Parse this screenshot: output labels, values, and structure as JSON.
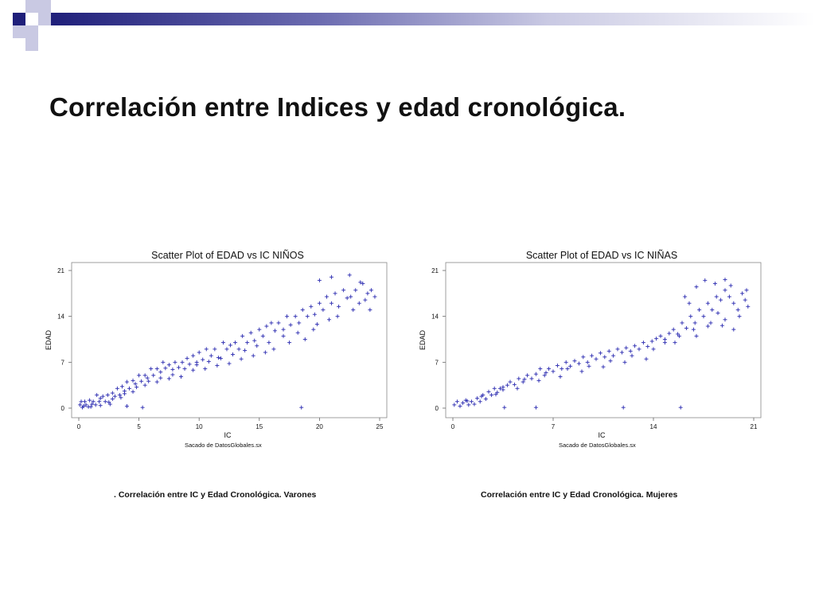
{
  "slide": {
    "title": "Correlación entre Indices y edad cronológica."
  },
  "colors": {
    "accent_dark": "#1f1f7a",
    "accent_light": "#c9c9e3",
    "marker": "#2a2ab0"
  },
  "captions": {
    "left": ". Correlación entre IC y Edad Cronológica. Varones",
    "right": "Correlación entre IC y Edad Cronológica. Mujeres"
  },
  "chart_data": [
    {
      "type": "scatter",
      "title": "Scatter Plot of EDAD vs IC NIÑOS",
      "xlabel": "IC",
      "ylabel": "EDAD",
      "footnote": "Sacado de DatosGlobales.sx",
      "xlim": [
        0,
        25
      ],
      "ylim": [
        0,
        21
      ],
      "xticks": [
        0,
        5,
        10,
        15,
        20,
        25
      ],
      "yticks": [
        0,
        7,
        14,
        21
      ],
      "marker": "plus",
      "series": [
        {
          "points": [
            [
              0.1,
              0.5
            ],
            [
              0.2,
              1
            ],
            [
              0.4,
              0.3
            ],
            [
              0.5,
              1
            ],
            [
              0.6,
              0.5
            ],
            [
              0.8,
              0.2
            ],
            [
              0.9,
              1.2
            ],
            [
              1.1,
              0.6
            ],
            [
              1.2,
              1
            ],
            [
              1.4,
              0.5
            ],
            [
              1.5,
              2
            ],
            [
              1.7,
              1
            ],
            [
              1.8,
              0.4
            ],
            [
              2.0,
              1.8
            ],
            [
              2.2,
              1
            ],
            [
              2.4,
              2
            ],
            [
              2.6,
              0.6
            ],
            [
              2.8,
              2.3
            ],
            [
              3.0,
              1.8
            ],
            [
              3.2,
              3
            ],
            [
              3.4,
              2
            ],
            [
              3.6,
              3.3
            ],
            [
              3.8,
              2.6
            ],
            [
              4.0,
              4
            ],
            [
              4.2,
              3
            ],
            [
              4.5,
              4.2
            ],
            [
              4.7,
              3.7
            ],
            [
              5.0,
              5
            ],
            [
              5.2,
              4.1
            ],
            [
              5.5,
              5
            ],
            [
              5.7,
              4.6
            ],
            [
              6.0,
              6
            ],
            [
              6.2,
              5
            ],
            [
              6.5,
              6
            ],
            [
              6.8,
              5.5
            ],
            [
              7.0,
              7
            ],
            [
              7.2,
              6.1
            ],
            [
              7.5,
              6.6
            ],
            [
              7.8,
              5.9
            ],
            [
              8.0,
              7
            ],
            [
              8.3,
              6.2
            ],
            [
              8.6,
              7
            ],
            [
              9.0,
              7.6
            ],
            [
              9.2,
              6.7
            ],
            [
              9.5,
              8
            ],
            [
              9.8,
              7
            ],
            [
              10.0,
              8.5
            ],
            [
              10.3,
              7.4
            ],
            [
              10.6,
              9
            ],
            [
              11.0,
              8
            ],
            [
              11.3,
              9
            ],
            [
              11.6,
              7.7
            ],
            [
              12.0,
              10
            ],
            [
              12.3,
              9
            ],
            [
              12.6,
              9.6
            ],
            [
              13.0,
              10
            ],
            [
              13.3,
              9
            ],
            [
              13.6,
              11
            ],
            [
              14.0,
              10
            ],
            [
              14.3,
              11.5
            ],
            [
              14.6,
              10.3
            ],
            [
              15.0,
              12
            ],
            [
              15.3,
              11
            ],
            [
              15.6,
              12.5
            ],
            [
              16.0,
              13
            ],
            [
              16.3,
              11.8
            ],
            [
              16.6,
              13
            ],
            [
              17.0,
              12
            ],
            [
              17.3,
              14
            ],
            [
              17.6,
              12.7
            ],
            [
              18.0,
              14
            ],
            [
              18.3,
              13
            ],
            [
              18.6,
              15
            ],
            [
              19.0,
              14
            ],
            [
              19.3,
              15.5
            ],
            [
              19.6,
              14.3
            ],
            [
              20.0,
              16
            ],
            [
              20.3,
              15
            ],
            [
              20.6,
              17
            ],
            [
              21.0,
              16
            ],
            [
              21.3,
              17.5
            ],
            [
              21.6,
              15.5
            ],
            [
              22.0,
              18
            ],
            [
              22.3,
              16.8
            ],
            [
              22.6,
              17
            ],
            [
              23.0,
              18
            ],
            [
              23.3,
              16
            ],
            [
              23.6,
              19
            ],
            [
              24.0,
              17.5
            ],
            [
              24.3,
              18
            ],
            [
              24.6,
              17
            ],
            [
              20.0,
              19.5
            ],
            [
              21.0,
              20
            ],
            [
              22.5,
              20.3
            ],
            [
              23.4,
              19.2
            ],
            [
              19.5,
              12
            ],
            [
              18.8,
              10.5
            ],
            [
              17.5,
              10
            ],
            [
              16.2,
              9
            ],
            [
              15.5,
              8.5
            ],
            [
              14.5,
              8
            ],
            [
              13.5,
              7.5
            ],
            [
              12.5,
              6.8
            ],
            [
              11.5,
              6.5
            ],
            [
              10.5,
              6
            ],
            [
              9.5,
              5.8
            ],
            [
              8.5,
              4.8
            ],
            [
              7.5,
              4.5
            ],
            [
              6.5,
              4
            ],
            [
              5.5,
              3.5
            ],
            [
              4.5,
              2.5
            ],
            [
              3.5,
              1.6
            ],
            [
              2.5,
              0.9
            ],
            [
              18.5,
              0.1
            ],
            [
              5.3,
              0.1
            ],
            [
              4.0,
              0.3
            ],
            [
              21.5,
              14
            ],
            [
              22.8,
              15
            ],
            [
              23.8,
              16.5
            ],
            [
              24.2,
              15
            ],
            [
              20.8,
              13.5
            ],
            [
              19.8,
              12.8
            ],
            [
              18.2,
              11.5
            ],
            [
              17.0,
              11
            ],
            [
              15.8,
              10
            ],
            [
              14.8,
              9.5
            ],
            [
              13.8,
              8.8
            ],
            [
              12.8,
              8.2
            ],
            [
              11.8,
              7.6
            ],
            [
              10.8,
              7.1
            ],
            [
              9.8,
              6.6
            ],
            [
              8.8,
              6
            ],
            [
              7.8,
              5.1
            ],
            [
              6.8,
              4.6
            ],
            [
              5.8,
              4.1
            ],
            [
              4.8,
              3.2
            ],
            [
              3.8,
              2.2
            ],
            [
              2.8,
              1.4
            ],
            [
              1.8,
              1.5
            ],
            [
              1.0,
              0.2
            ],
            [
              0.3,
              0.1
            ]
          ]
        }
      ]
    },
    {
      "type": "scatter",
      "title": "Scatter Plot of EDAD vs IC NIÑAS",
      "xlabel": "IC",
      "ylabel": "EDAD",
      "footnote": "Sacado de DatosGlobales.sx",
      "xlim": [
        0,
        21
      ],
      "ylim": [
        0,
        21
      ],
      "xticks": [
        0,
        7,
        14,
        21
      ],
      "yticks": [
        0,
        7,
        14,
        21
      ],
      "marker": "plus",
      "series": [
        {
          "points": [
            [
              0.1,
              0.5
            ],
            [
              0.3,
              1
            ],
            [
              0.5,
              0.3
            ],
            [
              0.7,
              0.8
            ],
            [
              0.9,
              1.2
            ],
            [
              1.1,
              0.5
            ],
            [
              1.3,
              1
            ],
            [
              1.5,
              0.6
            ],
            [
              1.7,
              1.5
            ],
            [
              1.9,
              1
            ],
            [
              2.1,
              2
            ],
            [
              2.3,
              1.4
            ],
            [
              2.5,
              2.5
            ],
            [
              2.7,
              2
            ],
            [
              2.9,
              3
            ],
            [
              3.1,
              2.4
            ],
            [
              3.3,
              3
            ],
            [
              3.5,
              2.8
            ],
            [
              3.8,
              3.5
            ],
            [
              4.0,
              4
            ],
            [
              4.3,
              3.6
            ],
            [
              4.6,
              4.5
            ],
            [
              4.9,
              4
            ],
            [
              5.2,
              5
            ],
            [
              5.5,
              4.5
            ],
            [
              5.8,
              5.2
            ],
            [
              6.1,
              6
            ],
            [
              6.4,
              5
            ],
            [
              6.7,
              6
            ],
            [
              7.0,
              5.6
            ],
            [
              7.3,
              6.5
            ],
            [
              7.6,
              6
            ],
            [
              7.9,
              7
            ],
            [
              8.2,
              6.4
            ],
            [
              8.5,
              7.2
            ],
            [
              8.8,
              6.8
            ],
            [
              9.1,
              7.8
            ],
            [
              9.4,
              7
            ],
            [
              9.7,
              8
            ],
            [
              10.0,
              7.5
            ],
            [
              10.3,
              8.4
            ],
            [
              10.6,
              7.8
            ],
            [
              10.9,
              8.7
            ],
            [
              11.2,
              8
            ],
            [
              11.5,
              9
            ],
            [
              11.8,
              8.5
            ],
            [
              12.1,
              9.2
            ],
            [
              12.4,
              8.7
            ],
            [
              12.7,
              9.5
            ],
            [
              13.0,
              9
            ],
            [
              13.3,
              10
            ],
            [
              13.6,
              9.4
            ],
            [
              13.9,
              10.2
            ],
            [
              14.2,
              10.6
            ],
            [
              14.5,
              11
            ],
            [
              14.8,
              10.5
            ],
            [
              15.1,
              11.4
            ],
            [
              15.4,
              12
            ],
            [
              15.7,
              11.3
            ],
            [
              16.0,
              13
            ],
            [
              16.3,
              12.2
            ],
            [
              16.6,
              14
            ],
            [
              16.9,
              13
            ],
            [
              17.2,
              15
            ],
            [
              17.5,
              14
            ],
            [
              17.8,
              16
            ],
            [
              18.1,
              15
            ],
            [
              18.4,
              17
            ],
            [
              18.7,
              16.5
            ],
            [
              19.0,
              18
            ],
            [
              19.3,
              17
            ],
            [
              19.6,
              16
            ],
            [
              19.9,
              15
            ],
            [
              20.2,
              17.5
            ],
            [
              20.5,
              18
            ],
            [
              17.0,
              18.5
            ],
            [
              17.6,
              19.5
            ],
            [
              18.3,
              19
            ],
            [
              19.0,
              19.6
            ],
            [
              19.4,
              18.7
            ],
            [
              16.2,
              17
            ],
            [
              16.5,
              16
            ],
            [
              18.0,
              13
            ],
            [
              18.8,
              12.6
            ],
            [
              19.6,
              12
            ],
            [
              17.0,
              11
            ],
            [
              15.5,
              10
            ],
            [
              14.0,
              9
            ],
            [
              12.5,
              8
            ],
            [
              11.0,
              7.2
            ],
            [
              9.5,
              6.4
            ],
            [
              8.0,
              6
            ],
            [
              6.5,
              5.4
            ],
            [
              5.0,
              4.4
            ],
            [
              3.5,
              3.2
            ],
            [
              2.0,
              1.8
            ],
            [
              1.0,
              1.1
            ],
            [
              3.6,
              0.1
            ],
            [
              5.8,
              0.1
            ],
            [
              11.9,
              0.1
            ],
            [
              15.9,
              0.1
            ],
            [
              13.5,
              7.5
            ],
            [
              12.0,
              7
            ],
            [
              10.5,
              6.3
            ],
            [
              9.0,
              5.6
            ],
            [
              7.5,
              4.8
            ],
            [
              6.0,
              4.2
            ],
            [
              4.5,
              3
            ],
            [
              3.0,
              2.1
            ],
            [
              20.0,
              14
            ],
            [
              19.0,
              13.5
            ],
            [
              18.5,
              14.5
            ],
            [
              17.8,
              12.5
            ],
            [
              16.8,
              12
            ],
            [
              15.8,
              11
            ],
            [
              14.8,
              10
            ],
            [
              20.4,
              16.5
            ],
            [
              20.6,
              15.5
            ]
          ]
        }
      ]
    }
  ]
}
